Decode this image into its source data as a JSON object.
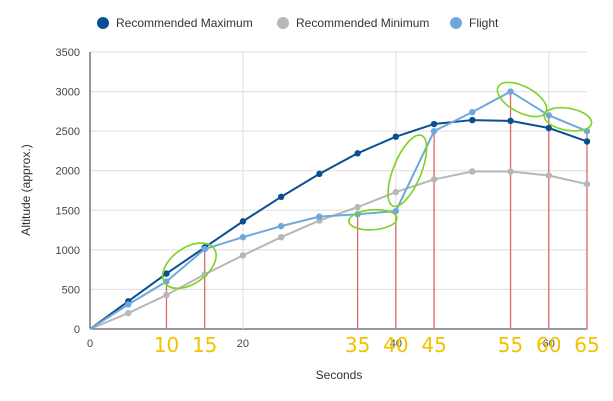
{
  "chart_data": {
    "type": "line",
    "xlabel": "Seconds",
    "ylabel": "Altitude (approx.)",
    "xlim": [
      0,
      65
    ],
    "ylim": [
      0,
      3500
    ],
    "x_ticks": [
      "0",
      "20",
      "40",
      "60"
    ],
    "y_ticks": [
      "0",
      "500",
      "1000",
      "1500",
      "2000",
      "2500",
      "3000",
      "3500"
    ],
    "grid": true,
    "legend_position": "top",
    "series": [
      {
        "name": "Recommended Maximum",
        "color": "#0b4f93",
        "x": [
          0,
          5,
          10,
          15,
          20,
          25,
          30,
          35,
          40,
          45,
          50,
          55,
          60,
          65
        ],
        "values": [
          0,
          350,
          700,
          1030,
          1360,
          1670,
          1960,
          2220,
          2430,
          2590,
          2640,
          2630,
          2540,
          2370
        ]
      },
      {
        "name": "Recommended Minimum",
        "color": "#b7b7b7",
        "x": [
          0,
          5,
          10,
          15,
          20,
          25,
          30,
          35,
          40,
          45,
          50,
          55,
          60,
          65
        ],
        "values": [
          0,
          200,
          430,
          690,
          930,
          1160,
          1370,
          1540,
          1730,
          1890,
          1990,
          1990,
          1940,
          1830
        ]
      },
      {
        "name": "Flight",
        "color": "#6fa8dc",
        "x": [
          0,
          5,
          10,
          15,
          20,
          25,
          30,
          35,
          40,
          45,
          50,
          55,
          60,
          65
        ],
        "values": [
          0,
          310,
          600,
          1010,
          1160,
          1300,
          1420,
          1450,
          1490,
          2500,
          2740,
          3000,
          2700,
          2500
        ]
      }
    ],
    "annotations": {
      "handwritten_labels": [
        "10",
        "15",
        "35",
        "40",
        "45",
        "55",
        "60",
        "65"
      ],
      "marker_x": [
        10,
        15,
        35,
        40,
        45,
        55,
        60,
        65
      ],
      "label_color": "#f2c200",
      "drop_line_color": "#e06666",
      "circle_color": "#7ed321"
    }
  }
}
